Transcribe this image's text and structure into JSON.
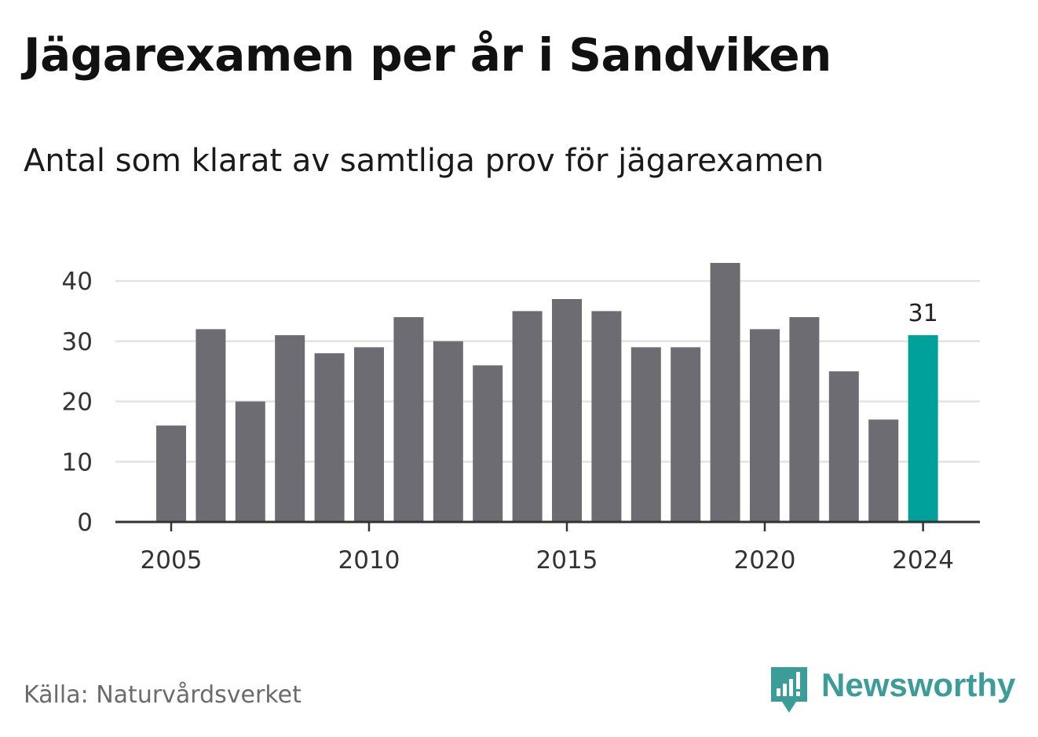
{
  "header": {
    "title": "Jägarexamen per år i Sandviken",
    "subtitle": "Antal som klarat av samtliga prov för jägarexamen"
  },
  "footer": {
    "source": "Källa: Naturvårdsverket",
    "brand": "Newsworthy",
    "brand_icon": "newsworthy-logo-icon",
    "brand_color": "#3a9d98"
  },
  "chart_data": {
    "type": "bar",
    "x": [
      2005,
      2006,
      2007,
      2008,
      2009,
      2010,
      2011,
      2012,
      2013,
      2014,
      2015,
      2016,
      2017,
      2018,
      2019,
      2020,
      2021,
      2022,
      2023,
      2024
    ],
    "values": [
      16,
      32,
      20,
      31,
      28,
      29,
      34,
      30,
      26,
      35,
      37,
      35,
      29,
      29,
      43,
      32,
      34,
      25,
      17,
      31
    ],
    "title": "Jägarexamen per år i Sandviken",
    "subtitle": "Antal som klarat av samtliga prov för jägarexamen",
    "xlabel": "",
    "ylabel": "",
    "x_ticks": [
      2005,
      2010,
      2015,
      2020,
      2024
    ],
    "y_ticks": [
      0,
      10,
      20,
      30,
      40
    ],
    "ylim": [
      0,
      43
    ],
    "grid": true,
    "bar_color": "#6d6c72",
    "highlight_color": "#00a19a",
    "highlight": {
      "x": 2024,
      "label": "31"
    }
  }
}
